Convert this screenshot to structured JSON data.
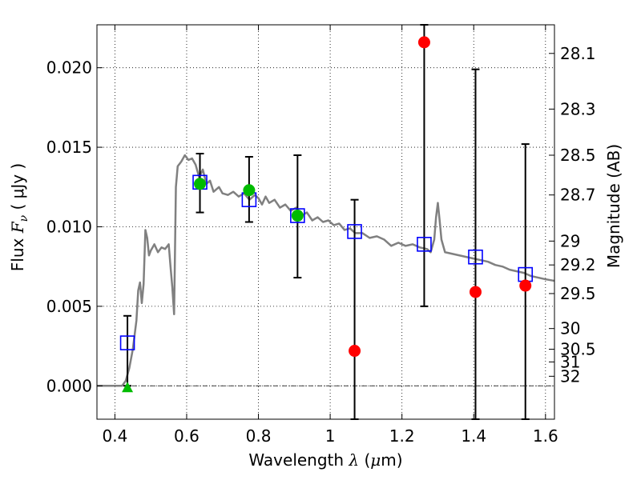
{
  "chart_data": {
    "type": "scatter",
    "title": "",
    "xlabel": {
      "prefix": "Wavelength ",
      "lambda": "λ",
      "unit_open": " (",
      "mu": "μ",
      "unit_close": "m)"
    },
    "ylabel": {
      "prefix": "Flux ",
      "F": "F",
      "nu": "ν",
      "unit": " ( μJy )"
    },
    "y2label": "Magnitude (AB)",
    "xlim": [
      0.35,
      1.625
    ],
    "ylim": [
      -0.0021,
      0.0227
    ],
    "grid": true,
    "x_ticks": [
      0.4,
      0.6,
      0.8,
      1.0,
      1.2,
      1.4,
      1.6
    ],
    "x_tick_labels": [
      "0.4",
      "0.6",
      "0.8",
      "1",
      "1.2",
      "1.4",
      "1.6"
    ],
    "y_ticks": [
      0.0,
      0.005,
      0.01,
      0.015,
      0.02
    ],
    "y_tick_labels": [
      "0.000",
      "0.005",
      "0.010",
      "0.015",
      "0.020"
    ],
    "mag_ticks": [
      {
        "label": "28.1",
        "flux": 0.0209
      },
      {
        "label": "28.3",
        "flux": 0.0174
      },
      {
        "label": "28.5",
        "flux": 0.0145
      },
      {
        "label": "28.7",
        "flux": 0.012
      },
      {
        "label": "29",
        "flux": 0.0091
      },
      {
        "label": "29.2",
        "flux": 0.0076
      },
      {
        "label": "29.5",
        "flux": 0.0058
      },
      {
        "label": "30",
        "flux": 0.0036
      },
      {
        "label": "30.5",
        "flux": 0.0023
      },
      {
        "label": "31",
        "flux": 0.0015
      },
      {
        "label": "32",
        "flux": 0.0006
      }
    ],
    "series": [
      {
        "kind": "model_sed",
        "color": "#808080",
        "points": [
          [
            0.35,
            0.0
          ],
          [
            0.42,
            0.0
          ],
          [
            0.43,
            0.0003
          ],
          [
            0.44,
            0.0011
          ],
          [
            0.45,
            0.0023
          ],
          [
            0.46,
            0.0041
          ],
          [
            0.465,
            0.006
          ],
          [
            0.47,
            0.0065
          ],
          [
            0.475,
            0.0052
          ],
          [
            0.48,
            0.0064
          ],
          [
            0.485,
            0.0098
          ],
          [
            0.49,
            0.0093
          ],
          [
            0.495,
            0.0082
          ],
          [
            0.5,
            0.0085
          ],
          [
            0.51,
            0.0089
          ],
          [
            0.52,
            0.0084
          ],
          [
            0.53,
            0.0087
          ],
          [
            0.54,
            0.0086
          ],
          [
            0.55,
            0.0089
          ],
          [
            0.555,
            0.0075
          ],
          [
            0.56,
            0.0062
          ],
          [
            0.565,
            0.0045
          ],
          [
            0.57,
            0.0125
          ],
          [
            0.575,
            0.0138
          ],
          [
            0.585,
            0.0141
          ],
          [
            0.595,
            0.0145
          ],
          [
            0.605,
            0.0142
          ],
          [
            0.615,
            0.0143
          ],
          [
            0.625,
            0.0139
          ],
          [
            0.635,
            0.0131
          ],
          [
            0.645,
            0.0136
          ],
          [
            0.655,
            0.0127
          ],
          [
            0.665,
            0.0129
          ],
          [
            0.675,
            0.0122
          ],
          [
            0.69,
            0.0125
          ],
          [
            0.7,
            0.0121
          ],
          [
            0.715,
            0.012
          ],
          [
            0.73,
            0.0122
          ],
          [
            0.745,
            0.0119
          ],
          [
            0.76,
            0.0121
          ],
          [
            0.775,
            0.0117
          ],
          [
            0.79,
            0.012
          ],
          [
            0.8,
            0.0118
          ],
          [
            0.81,
            0.0114
          ],
          [
            0.82,
            0.0119
          ],
          [
            0.83,
            0.0115
          ],
          [
            0.845,
            0.0117
          ],
          [
            0.86,
            0.0112
          ],
          [
            0.875,
            0.0114
          ],
          [
            0.89,
            0.011
          ],
          [
            0.905,
            0.0112
          ],
          [
            0.92,
            0.0107
          ],
          [
            0.935,
            0.0109
          ],
          [
            0.95,
            0.0104
          ],
          [
            0.965,
            0.0106
          ],
          [
            0.98,
            0.0103
          ],
          [
            0.995,
            0.0104
          ],
          [
            1.01,
            0.0101
          ],
          [
            1.025,
            0.0102
          ],
          [
            1.04,
            0.0098
          ],
          [
            1.055,
            0.0099
          ],
          [
            1.07,
            0.0096
          ],
          [
            1.09,
            0.0096
          ],
          [
            1.11,
            0.0093
          ],
          [
            1.13,
            0.0094
          ],
          [
            1.15,
            0.0092
          ],
          [
            1.17,
            0.0088
          ],
          [
            1.19,
            0.009
          ],
          [
            1.21,
            0.0088
          ],
          [
            1.23,
            0.0089
          ],
          [
            1.25,
            0.0087
          ],
          [
            1.27,
            0.0086
          ],
          [
            1.28,
            0.0084
          ],
          [
            1.29,
            0.0092
          ],
          [
            1.295,
            0.0106
          ],
          [
            1.3,
            0.0115
          ],
          [
            1.305,
            0.0104
          ],
          [
            1.31,
            0.0092
          ],
          [
            1.32,
            0.0084
          ],
          [
            1.34,
            0.0083
          ],
          [
            1.36,
            0.0082
          ],
          [
            1.38,
            0.0081
          ],
          [
            1.4,
            0.008
          ],
          [
            1.42,
            0.0079
          ],
          [
            1.44,
            0.0078
          ],
          [
            1.46,
            0.0076
          ],
          [
            1.48,
            0.0075
          ],
          [
            1.5,
            0.0073
          ],
          [
            1.52,
            0.0072
          ],
          [
            1.54,
            0.0071
          ],
          [
            1.56,
            0.0069
          ],
          [
            1.58,
            0.0068
          ],
          [
            1.6,
            0.0067
          ],
          [
            1.625,
            0.0066
          ]
        ]
      },
      {
        "kind": "model_photometry",
        "marker": "open-square",
        "color": "#0000ff",
        "points": [
          [
            0.435,
            0.0027
          ],
          [
            0.637,
            0.0128
          ],
          [
            0.774,
            0.0117
          ],
          [
            0.909,
            0.0107
          ],
          [
            1.068,
            0.0097
          ],
          [
            1.262,
            0.0089
          ],
          [
            1.405,
            0.0081
          ],
          [
            1.544,
            0.007
          ]
        ]
      },
      {
        "kind": "observed_errors",
        "color": "#000000",
        "points": [
          {
            "x": 0.435,
            "lo": 0.0,
            "hi": 0.0044
          },
          {
            "x": 0.637,
            "lo": 0.0109,
            "hi": 0.0146
          },
          {
            "x": 0.774,
            "lo": 0.0103,
            "hi": 0.0144
          },
          {
            "x": 0.909,
            "lo": 0.0068,
            "hi": 0.0145
          },
          {
            "x": 1.068,
            "lo": -0.0021,
            "hi": 0.0117
          },
          {
            "x": 1.262,
            "lo": 0.005,
            "hi": 0.0227
          },
          {
            "x": 1.405,
            "lo": -0.0021,
            "hi": 0.0199
          },
          {
            "x": 1.544,
            "lo": -0.0021,
            "hi": 0.0152
          }
        ]
      },
      {
        "kind": "detections",
        "marker": "circle",
        "color": "#00bb00",
        "points": [
          [
            0.637,
            0.0127
          ],
          [
            0.774,
            0.0123
          ],
          [
            0.909,
            0.0107
          ]
        ]
      },
      {
        "kind": "low_sn",
        "marker": "circle",
        "color": "#ff0000",
        "points": [
          [
            1.068,
            0.0022
          ],
          [
            1.262,
            0.0216
          ],
          [
            1.405,
            0.0059
          ],
          [
            1.544,
            0.0063
          ]
        ]
      },
      {
        "kind": "upper_limit",
        "marker": "triangle",
        "color": "#00bb00",
        "points": [
          [
            0.435,
            -0.0001
          ]
        ]
      }
    ]
  }
}
